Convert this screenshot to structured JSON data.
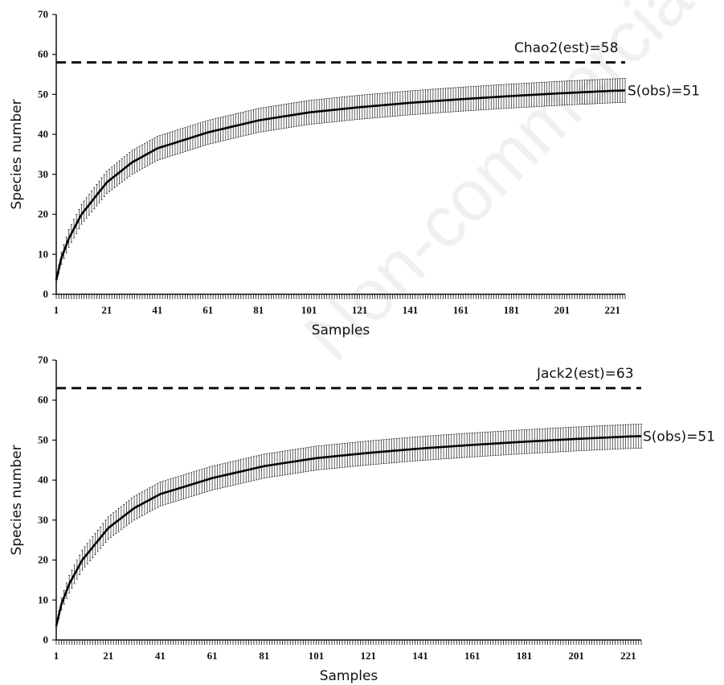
{
  "watermark": "Non-commercial",
  "chart_data": [
    {
      "type": "line",
      "xlabel": "Samples",
      "ylabel": "Species number",
      "ylim": [
        0,
        70
      ],
      "yticks": [
        0,
        10,
        20,
        30,
        40,
        50,
        60,
        70
      ],
      "xlim": [
        1,
        226
      ],
      "xticks": [
        1,
        21,
        41,
        61,
        81,
        101,
        121,
        141,
        161,
        181,
        201,
        221
      ],
      "n_samples": 226,
      "grid": false,
      "estimator": {
        "label": "Chao2(est)=58",
        "value": 58,
        "style": "dashed"
      },
      "observed": {
        "label": "S(obs)=51",
        "value": 51
      },
      "series": [
        {
          "name": "S(obs)",
          "error_bars": true,
          "x": [
            1,
            3,
            6,
            11,
            21,
            31,
            41,
            61,
            81,
            101,
            121,
            141,
            161,
            181,
            201,
            221,
            226
          ],
          "values": [
            3.5,
            9,
            14,
            20,
            28,
            33,
            36.5,
            40.5,
            43.5,
            45.5,
            46.8,
            47.9,
            48.8,
            49.6,
            50.3,
            50.9,
            51
          ],
          "error": [
            0.5,
            1.5,
            2.2,
            2.5,
            2.8,
            3.0,
            3.0,
            3.0,
            3.0,
            3.0,
            3.0,
            3.0,
            3.0,
            3.0,
            3.0,
            3.0,
            3.0
          ]
        }
      ]
    },
    {
      "type": "line",
      "xlabel": "Samples",
      "ylabel": "Species number",
      "ylim": [
        0,
        70
      ],
      "yticks": [
        0,
        10,
        20,
        30,
        40,
        50,
        60,
        70
      ],
      "xlim": [
        1,
        226
      ],
      "xticks": [
        1,
        21,
        41,
        61,
        81,
        101,
        121,
        141,
        161,
        181,
        201,
        221
      ],
      "n_samples": 226,
      "grid": false,
      "estimator": {
        "label": "Jack2(est)=63",
        "value": 63,
        "style": "dashed"
      },
      "observed": {
        "label": "S(obs)=51",
        "value": 51
      },
      "series": [
        {
          "name": "S(obs)",
          "error_bars": true,
          "x": [
            1,
            3,
            6,
            11,
            21,
            31,
            41,
            61,
            81,
            101,
            121,
            141,
            161,
            181,
            201,
            221,
            226
          ],
          "values": [
            3.5,
            9,
            14,
            20,
            28,
            33,
            36.5,
            40.5,
            43.5,
            45.5,
            46.8,
            47.9,
            48.8,
            49.6,
            50.3,
            50.9,
            51
          ],
          "error": [
            0.5,
            1.5,
            2.2,
            2.5,
            2.8,
            3.0,
            3.0,
            3.0,
            3.0,
            3.0,
            3.0,
            3.0,
            3.0,
            3.0,
            3.0,
            3.0,
            3.0
          ]
        }
      ]
    }
  ]
}
